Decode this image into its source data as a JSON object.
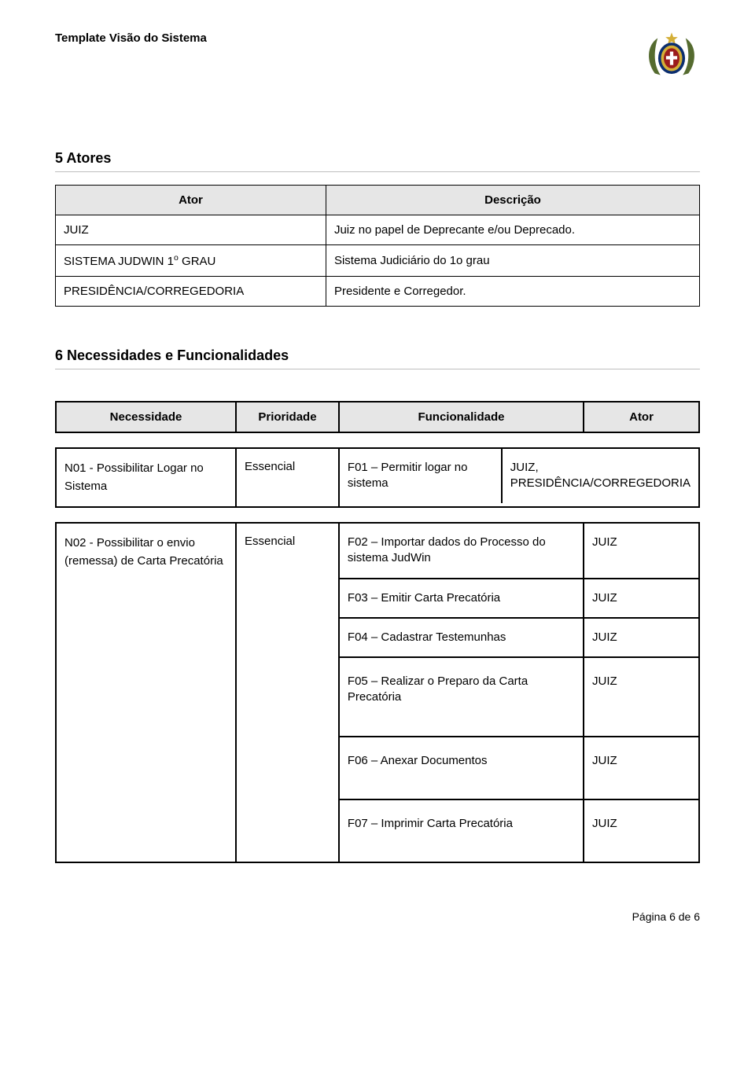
{
  "header": {
    "doc_title": "Template Visão do Sistema"
  },
  "crest": {
    "colors": {
      "laurel": "#556b2f",
      "shield_outer": "#0b2e6f",
      "shield_mid": "#d4af37",
      "shield_inner": "#9b1c1c",
      "top_star": "#d4af37",
      "cross": "#ffffff"
    }
  },
  "sections": {
    "actors_heading": "5 Atores",
    "needs_heading": "6 Necessidades e Funcionalidades"
  },
  "actors_table": {
    "columns": {
      "actor": "Ator",
      "description": "Descrição"
    },
    "rows": [
      {
        "actor_pre": "JUIZ",
        "actor_sup": "",
        "actor_post": "",
        "description": "Juiz no papel de Deprecante e/ou Deprecado."
      },
      {
        "actor_pre": "SISTEMA JUDWIN 1",
        "actor_sup": "o",
        "actor_post": " GRAU",
        "description": "Sistema Judiciário do 1o grau"
      },
      {
        "actor_pre": "PRESIDÊNCIA/CORREGEDORIA",
        "actor_sup": "",
        "actor_post": "",
        "description": "Presidente e Corregedor."
      }
    ]
  },
  "needs_table": {
    "columns": {
      "need": "Necessidade",
      "priority": "Prioridade",
      "functionality": "Funcionalidade",
      "actor": "Ator"
    },
    "groups": [
      {
        "need": "N01 - Possibilitar Logar no Sistema",
        "priority": "Essencial",
        "rows": [
          {
            "func": "F01 – Permitir logar no sistema",
            "actor": "JUIZ, PRESIDÊNCIA/CORREGEDORIA",
            "tall": false
          }
        ]
      },
      {
        "need": "N02 - Possibilitar o envio (remessa) de Carta Precatória",
        "priority": "Essencial",
        "rows": [
          {
            "func": "F02 – Importar dados do Processo do sistema JudWin",
            "actor": "JUIZ",
            "tall": false
          },
          {
            "func": "F03 – Emitir Carta Precatória",
            "actor": "JUIZ",
            "tall": false
          },
          {
            "func": "F04 – Cadastrar Testemunhas",
            "actor": "JUIZ",
            "tall": false
          },
          {
            "func": "F05 – Realizar o Preparo da Carta Precatória",
            "actor": "JUIZ",
            "tall": true
          },
          {
            "func": "F06 – Anexar Documentos",
            "actor": "JUIZ",
            "tall": true
          },
          {
            "func": "F07 – Imprimir Carta Precatória",
            "actor": "JUIZ",
            "tall": true
          }
        ]
      }
    ]
  },
  "footer": {
    "page_label": "Página 6 de 6"
  }
}
